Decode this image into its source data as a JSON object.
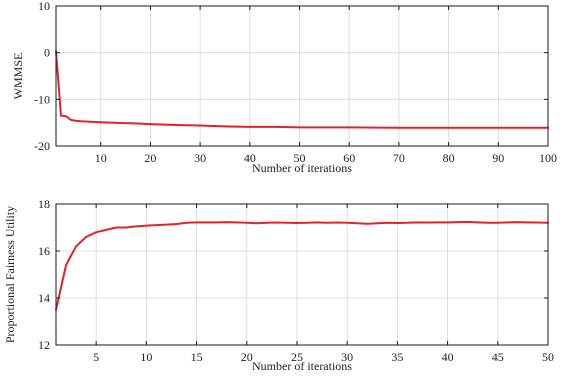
{
  "chart_data": [
    {
      "type": "line",
      "xlabel": "Number of iterations",
      "ylabel": "WMMSE",
      "xlim": [
        1,
        100
      ],
      "ylim": [
        -20,
        10
      ],
      "xticks": [
        10,
        20,
        30,
        40,
        50,
        60,
        70,
        80,
        90,
        100
      ],
      "yticks": [
        -20,
        -10,
        0,
        10
      ],
      "grid": true,
      "color": "#e0242c",
      "series": [
        {
          "x": [
            1,
            2,
            3,
            4,
            5,
            6,
            8,
            10,
            12,
            15,
            18,
            20,
            25,
            30,
            35,
            40,
            45,
            50,
            60,
            70,
            80,
            90,
            100
          ],
          "y": [
            0.3,
            -13.5,
            -13.6,
            -14.4,
            -14.6,
            -14.7,
            -14.8,
            -14.9,
            -15.0,
            -15.1,
            -15.2,
            -15.3,
            -15.5,
            -15.6,
            -15.8,
            -15.9,
            -15.9,
            -16.0,
            -16.0,
            -16.1,
            -16.1,
            -16.1,
            -16.1
          ]
        }
      ]
    },
    {
      "type": "line",
      "xlabel": "Number of iterations",
      "ylabel": "Proportional Fairness Utility",
      "xlim": [
        1,
        50
      ],
      "ylim": [
        12,
        18
      ],
      "xticks": [
        5,
        10,
        15,
        20,
        25,
        30,
        35,
        40,
        45,
        50
      ],
      "yticks": [
        12,
        14,
        16,
        18
      ],
      "grid": true,
      "color": "#e0242c",
      "series": [
        {
          "x": [
            1,
            2,
            3,
            4,
            5,
            6,
            7,
            8,
            9,
            10,
            11,
            12,
            13,
            14,
            15,
            16,
            17,
            18,
            19,
            20,
            21,
            22,
            23,
            24,
            25,
            26,
            27,
            28,
            29,
            30,
            31,
            32,
            33,
            34,
            35,
            36,
            37,
            38,
            39,
            40,
            41,
            42,
            43,
            44,
            45,
            46,
            47,
            48,
            49,
            50
          ],
          "y": [
            13.5,
            15.4,
            16.2,
            16.6,
            16.8,
            16.9,
            17.0,
            17.0,
            17.05,
            17.08,
            17.1,
            17.12,
            17.15,
            17.2,
            17.22,
            17.22,
            17.22,
            17.23,
            17.22,
            17.2,
            17.18,
            17.2,
            17.21,
            17.2,
            17.19,
            17.2,
            17.22,
            17.2,
            17.21,
            17.2,
            17.18,
            17.16,
            17.18,
            17.2,
            17.19,
            17.2,
            17.22,
            17.21,
            17.22,
            17.22,
            17.23,
            17.24,
            17.22,
            17.2,
            17.2,
            17.22,
            17.23,
            17.22,
            17.21,
            17.2
          ]
        }
      ]
    }
  ]
}
